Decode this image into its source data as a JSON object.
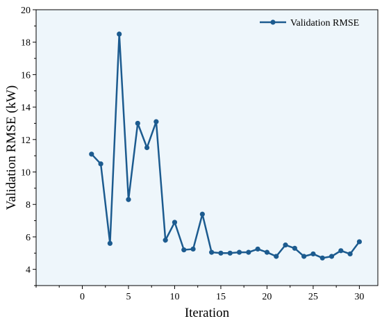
{
  "chart_data": {
    "type": "line",
    "title": "",
    "xlabel": "Iteration",
    "ylabel": "Validation RMSE (kW)",
    "xlim": [
      -5,
      32
    ],
    "ylim": [
      3,
      20
    ],
    "xticks": [
      0,
      5,
      10,
      15,
      20,
      25,
      30
    ],
    "yticks": [
      4,
      6,
      8,
      10,
      12,
      14,
      16,
      18,
      20
    ],
    "grid": false,
    "legend_position": "top-right",
    "background_color": "#eef6fb",
    "series": [
      {
        "name": "Validation RMSE",
        "color": "#1c5b8f",
        "x": [
          1,
          2,
          3,
          4,
          5,
          6,
          7,
          8,
          9,
          10,
          11,
          12,
          13,
          14,
          15,
          16,
          17,
          18,
          19,
          20,
          21,
          22,
          23,
          24,
          25,
          26,
          27,
          28,
          29,
          30
        ],
        "y": [
          11.1,
          10.5,
          5.6,
          18.5,
          8.3,
          13.0,
          11.5,
          13.1,
          5.8,
          6.9,
          5.2,
          5.25,
          7.4,
          5.05,
          5.0,
          5.0,
          5.05,
          5.05,
          5.25,
          5.05,
          4.8,
          5.5,
          5.3,
          4.8,
          4.95,
          4.7,
          4.8,
          5.15,
          4.95,
          5.7
        ]
      }
    ]
  }
}
